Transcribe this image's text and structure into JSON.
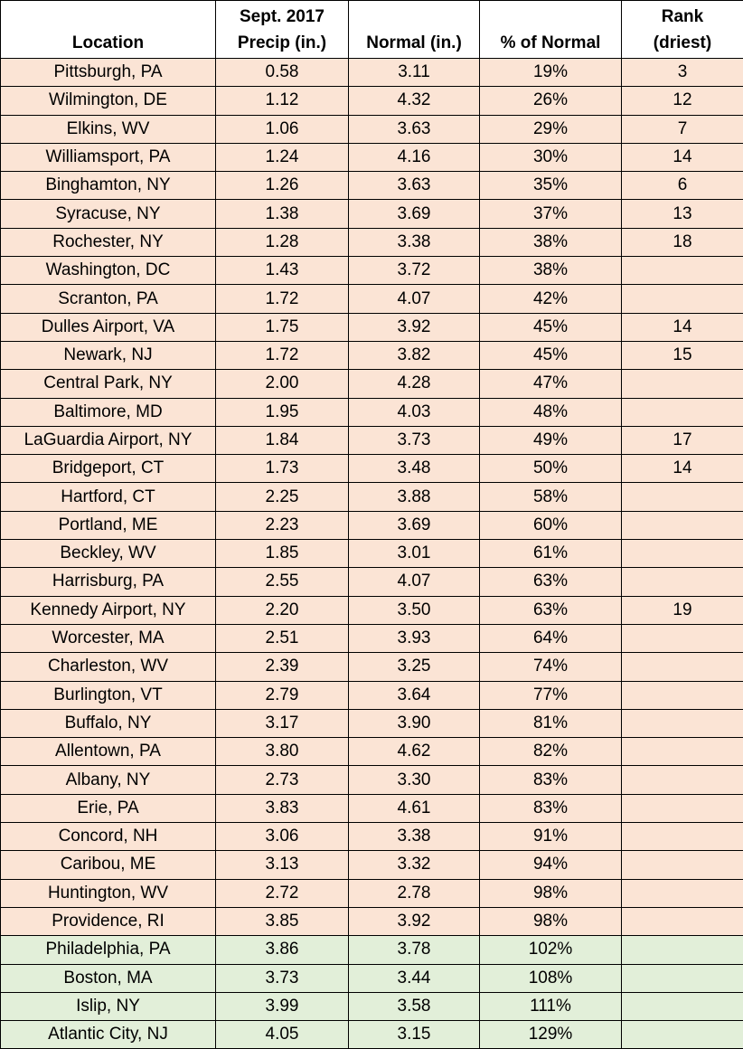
{
  "table": {
    "header": [
      "Location",
      "Sept. 2017\nPrecip (in.)",
      "Normal (in.)",
      "% of Normal",
      "Rank\n(driest)"
    ],
    "rows": [
      [
        "Pittsburgh, PA",
        "0.58",
        "3.11",
        "19%",
        "3"
      ],
      [
        "Wilmington, DE",
        "1.12",
        "4.32",
        "26%",
        "12"
      ],
      [
        "Elkins, WV",
        "1.06",
        "3.63",
        "29%",
        "7"
      ],
      [
        "Williamsport, PA",
        "1.24",
        "4.16",
        "30%",
        "14"
      ],
      [
        "Binghamton, NY",
        "1.26",
        "3.63",
        "35%",
        "6"
      ],
      [
        "Syracuse, NY",
        "1.38",
        "3.69",
        "37%",
        "13"
      ],
      [
        "Rochester, NY",
        "1.28",
        "3.38",
        "38%",
        "18"
      ],
      [
        "Washington, DC",
        "1.43",
        "3.72",
        "38%",
        null
      ],
      [
        "Scranton, PA",
        "1.72",
        "4.07",
        "42%",
        null
      ],
      [
        "Dulles Airport, VA",
        "1.75",
        "3.92",
        "45%",
        "14"
      ],
      [
        "Newark, NJ",
        "1.72",
        "3.82",
        "45%",
        "15"
      ],
      [
        "Central Park, NY",
        "2.00",
        "4.28",
        "47%",
        null
      ],
      [
        "Baltimore, MD",
        "1.95",
        "4.03",
        "48%",
        null
      ],
      [
        "LaGuardia Airport, NY",
        "1.84",
        "3.73",
        "49%",
        "17"
      ],
      [
        "Bridgeport, CT",
        "1.73",
        "3.48",
        "50%",
        "14"
      ],
      [
        "Hartford, CT",
        "2.25",
        "3.88",
        "58%",
        null
      ],
      [
        "Portland, ME",
        "2.23",
        "3.69",
        "60%",
        null
      ],
      [
        "Beckley, WV",
        "1.85",
        "3.01",
        "61%",
        null
      ],
      [
        "Harrisburg, PA",
        "2.55",
        "4.07",
        "63%",
        null
      ],
      [
        "Kennedy Airport, NY",
        "2.20",
        "3.50",
        "63%",
        "19"
      ],
      [
        "Worcester, MA",
        "2.51",
        "3.93",
        "64%",
        null
      ],
      [
        "Charleston, WV",
        "2.39",
        "3.25",
        "74%",
        null
      ],
      [
        "Burlington, VT",
        "2.79",
        "3.64",
        "77%",
        null
      ],
      [
        "Buffalo, NY",
        "3.17",
        "3.90",
        "81%",
        null
      ],
      [
        "Allentown, PA",
        "3.80",
        "4.62",
        "82%",
        null
      ],
      [
        "Albany, NY",
        "2.73",
        "3.30",
        "83%",
        null
      ],
      [
        "Erie, PA",
        "3.83",
        "4.61",
        "83%",
        null
      ],
      [
        "Concord, NH",
        "3.06",
        "3.38",
        "91%",
        null
      ],
      [
        "Caribou, ME",
        "3.13",
        "3.32",
        "94%",
        null
      ],
      [
        "Huntington, WV",
        "2.72",
        "2.78",
        "98%",
        null
      ],
      [
        "Providence, RI",
        "3.85",
        "3.92",
        "98%",
        null
      ],
      [
        "Philadelphia, PA",
        "3.86",
        "3.78",
        "102%",
        null
      ],
      [
        "Boston, MA",
        "3.73",
        "3.44",
        "108%",
        null
      ],
      [
        "Islip, NY",
        "3.99",
        "3.58",
        "111%",
        null
      ],
      [
        "Atlantic City, NJ",
        "4.05",
        "3.15",
        "129%",
        null
      ]
    ]
  }
}
